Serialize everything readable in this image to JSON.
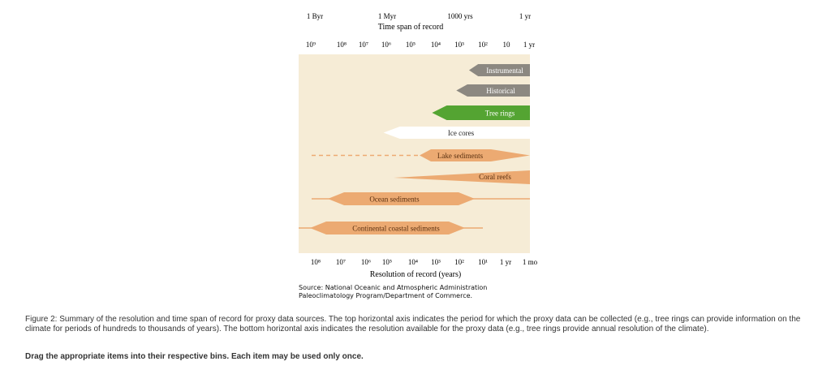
{
  "chart_data": {
    "type": "range-bar",
    "top_axis": {
      "title": "Time span of record",
      "major_labels": [
        "1 Byr",
        "1 Myr",
        "1000 yrs",
        "1 yr"
      ],
      "tick_labels": [
        "10⁹",
        "10⁸",
        "10⁷",
        "10⁶",
        "10⁵",
        "10⁴",
        "10³",
        "10²",
        "10",
        "1 yr"
      ]
    },
    "bottom_axis": {
      "title": "Resolution of record (years)",
      "tick_labels": [
        "10⁸",
        "10⁷",
        "10⁶",
        "10⁵",
        "10⁴",
        "10³",
        "10²",
        "10¹",
        "1 yr",
        "1 mo"
      ]
    },
    "series": [
      {
        "name": "Instrumental",
        "time_span_years": [
          1,
          300
        ]
      },
      {
        "name": "Historical",
        "time_span_years": [
          1,
          1000
        ]
      },
      {
        "name": "Tree rings",
        "time_span_years": [
          1,
          10000
        ]
      },
      {
        "name": "Ice cores",
        "time_span_years": [
          1,
          1000000
        ]
      },
      {
        "name": "Lake sediments",
        "time_span_years": [
          1,
          1000000000
        ]
      },
      {
        "name": "Coral reefs",
        "time_span_years": [
          1,
          1000000
        ]
      },
      {
        "name": "Ocean sediments",
        "resolution_years": [
          10,
          10000000
        ]
      },
      {
        "name": "Continental coastal sediments",
        "resolution_years": [
          10,
          100000000
        ]
      }
    ],
    "source": [
      "Source: National Oceanic and Atmospheric Administration",
      "Paleoclimatology Program/Department of Commerce."
    ]
  },
  "caption": "Figure 2: Summary of the resolution and time span of record for proxy data sources. The top horizontal axis indicates the period for which the proxy data can be collected (e.g., tree rings can provide information on the climate for periods of hundreds to thousands of years). The bottom horizontal axis indicates the resolution available for the proxy data (e.g., tree rings provide annual resolution of the climate).",
  "instruction": "Drag the appropriate items into their respective bins. Each item may be used only once.",
  "colors": {
    "panel": "#f6ecd6",
    "gray": "#8c8881",
    "green": "#54a432",
    "white": "#ffffff",
    "orange": "#ecaa72",
    "outline": "#c98a55"
  }
}
